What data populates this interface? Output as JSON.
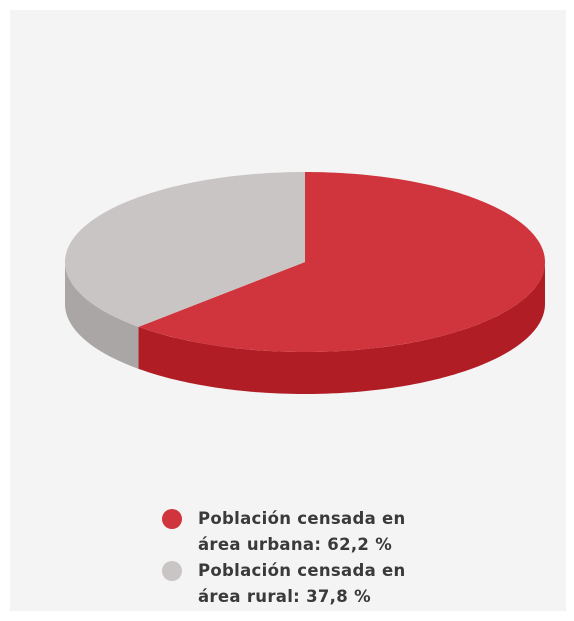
{
  "chart_data": {
    "type": "pie3d",
    "categories": [
      "Población censada en área urbana:",
      "Población censada en área rural:"
    ],
    "values": [
      62.2,
      37.8
    ],
    "value_labels": [
      "62,2 %",
      "37,8 %"
    ],
    "colors": [
      "#d0343c",
      "#c9c5c5"
    ],
    "side_colors": [
      "#b11d25",
      "#aaa6a6"
    ]
  }
}
